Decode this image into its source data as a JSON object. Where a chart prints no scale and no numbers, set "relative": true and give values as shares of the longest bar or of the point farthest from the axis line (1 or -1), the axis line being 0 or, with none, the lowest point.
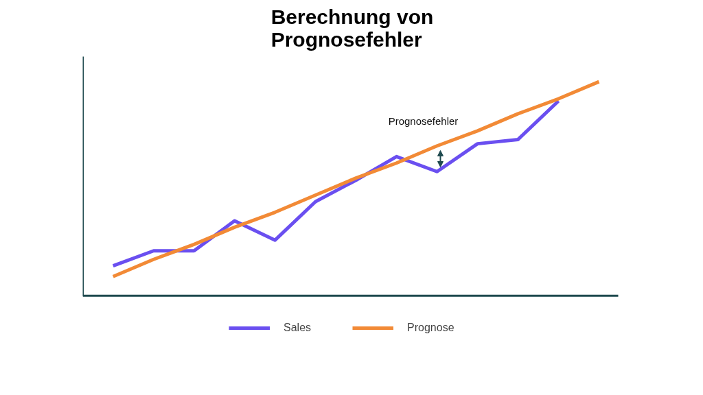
{
  "chart_data": {
    "type": "line",
    "title": "Berechnung von Prognosefehler",
    "relative": true,
    "legend": "bottom",
    "categories": [
      null,
      null,
      null,
      null,
      null,
      null,
      null,
      null,
      null,
      null,
      null,
      null,
      null
    ],
    "series": [
      {
        "name": "Sales",
        "color": "#6a4ff0",
        "values": [
          0.14,
          0.21,
          0.21,
          0.35,
          0.26,
          0.44,
          0.54,
          0.65,
          0.58,
          0.71,
          0.73,
          0.91,
          null
        ]
      },
      {
        "name": "Prognose",
        "color": "#f28a36",
        "values": [
          0.09,
          0.17,
          0.24,
          0.32,
          0.39,
          0.47,
          0.55,
          0.62,
          0.7,
          0.77,
          0.85,
          0.92,
          1
        ]
      }
    ],
    "annotations": [
      "Prognosefehler"
    ]
  }
}
